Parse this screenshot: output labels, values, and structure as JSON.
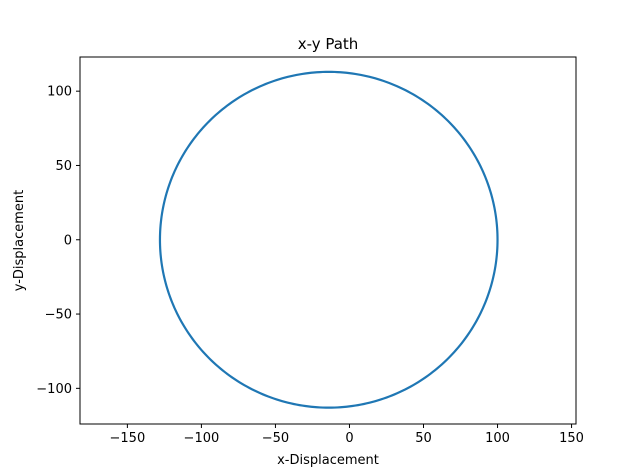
{
  "chart_data": {
    "type": "line",
    "title": "x-y Path",
    "xlabel": "x-Displacement",
    "ylabel": "y-Displacement",
    "xlim": [
      -182,
      153
    ],
    "ylim": [
      -124,
      123
    ],
    "x_ticks": [
      -150,
      -100,
      -50,
      0,
      50,
      100,
      150
    ],
    "x_tick_labels": [
      "−150",
      "−100",
      "−50",
      "0",
      "50",
      "100",
      "150"
    ],
    "y_ticks": [
      -100,
      -50,
      0,
      50,
      100
    ],
    "y_tick_labels": [
      "−100",
      "−50",
      "0",
      "50",
      "100"
    ],
    "grid": false,
    "legend": "none",
    "series": [
      {
        "name": "path",
        "color": "#1f77b4",
        "shape": "closed loop",
        "center": [
          -14,
          0
        ],
        "radius_x": 114,
        "radius_y": 113
      }
    ]
  }
}
